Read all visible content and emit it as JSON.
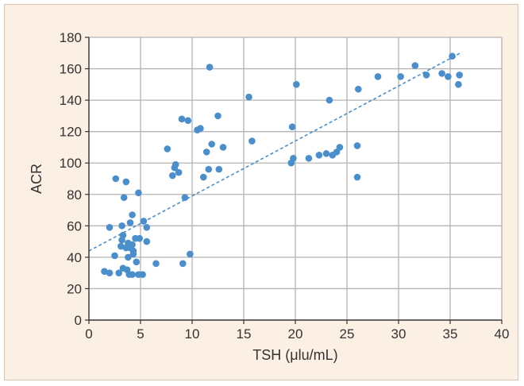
{
  "chart_data": {
    "type": "scatter",
    "title": "",
    "xlabel": "TSH (μlu/mL)",
    "ylabel": "ACR",
    "xlim": [
      0,
      40
    ],
    "ylim": [
      0,
      180
    ],
    "x_ticks": [
      0,
      5,
      10,
      15,
      20,
      25,
      30,
      35,
      40
    ],
    "y_ticks": [
      0,
      20,
      40,
      60,
      80,
      100,
      120,
      140,
      160,
      180
    ],
    "grid": true,
    "colors": {
      "background": "#fcefe4",
      "plot_background": "#ffffff",
      "grid": "#b4b4b4",
      "point": "#4a8fcc",
      "trendline": "#4a8fcc",
      "axis": "#333333"
    },
    "points": [
      [
        1.5,
        31
      ],
      [
        2.0,
        59
      ],
      [
        2.0,
        30
      ],
      [
        2.5,
        41
      ],
      [
        2.6,
        90
      ],
      [
        2.9,
        30
      ],
      [
        3.1,
        47
      ],
      [
        3.2,
        60
      ],
      [
        3.2,
        51
      ],
      [
        3.3,
        54
      ],
      [
        3.3,
        33
      ],
      [
        3.4,
        78
      ],
      [
        3.6,
        88
      ],
      [
        3.6,
        46
      ],
      [
        3.7,
        32
      ],
      [
        3.8,
        40
      ],
      [
        3.8,
        49
      ],
      [
        3.9,
        29
      ],
      [
        4.0,
        62
      ],
      [
        4.0,
        46
      ],
      [
        4.2,
        67
      ],
      [
        4.2,
        48
      ],
      [
        4.2,
        29
      ],
      [
        4.3,
        44
      ],
      [
        4.3,
        42
      ],
      [
        4.5,
        52
      ],
      [
        4.6,
        37
      ],
      [
        4.8,
        81
      ],
      [
        4.8,
        29
      ],
      [
        4.9,
        52
      ],
      [
        5.2,
        29
      ],
      [
        5.3,
        63
      ],
      [
        5.6,
        59
      ],
      [
        5.6,
        50
      ],
      [
        6.5,
        36
      ],
      [
        7.6,
        109
      ],
      [
        8.1,
        92
      ],
      [
        8.3,
        97
      ],
      [
        8.4,
        99
      ],
      [
        8.7,
        94
      ],
      [
        9.0,
        128
      ],
      [
        9.1,
        36
      ],
      [
        9.3,
        78
      ],
      [
        9.6,
        127
      ],
      [
        9.8,
        42
      ],
      [
        10.5,
        121
      ],
      [
        10.8,
        122
      ],
      [
        11.1,
        91
      ],
      [
        11.4,
        107
      ],
      [
        11.6,
        96
      ],
      [
        11.7,
        161
      ],
      [
        11.9,
        112
      ],
      [
        12.5,
        130
      ],
      [
        12.6,
        96
      ],
      [
        13.0,
        110
      ],
      [
        15.5,
        142
      ],
      [
        15.8,
        114
      ],
      [
        19.6,
        100
      ],
      [
        19.7,
        123
      ],
      [
        19.8,
        103
      ],
      [
        20.1,
        150
      ],
      [
        21.3,
        103
      ],
      [
        22.3,
        105
      ],
      [
        23.0,
        106
      ],
      [
        23.3,
        140
      ],
      [
        23.6,
        105
      ],
      [
        24.0,
        107
      ],
      [
        24.3,
        110
      ],
      [
        26.0,
        91
      ],
      [
        26.0,
        111
      ],
      [
        26.1,
        147
      ],
      [
        28.0,
        155
      ],
      [
        30.2,
        155
      ],
      [
        31.6,
        162
      ],
      [
        32.7,
        156
      ],
      [
        34.2,
        157
      ],
      [
        34.8,
        155
      ],
      [
        35.2,
        168
      ],
      [
        35.8,
        150
      ],
      [
        35.9,
        156
      ]
    ],
    "trendline": {
      "x": [
        0,
        36
      ],
      "y": [
        44,
        170
      ],
      "style": "dashed"
    }
  }
}
